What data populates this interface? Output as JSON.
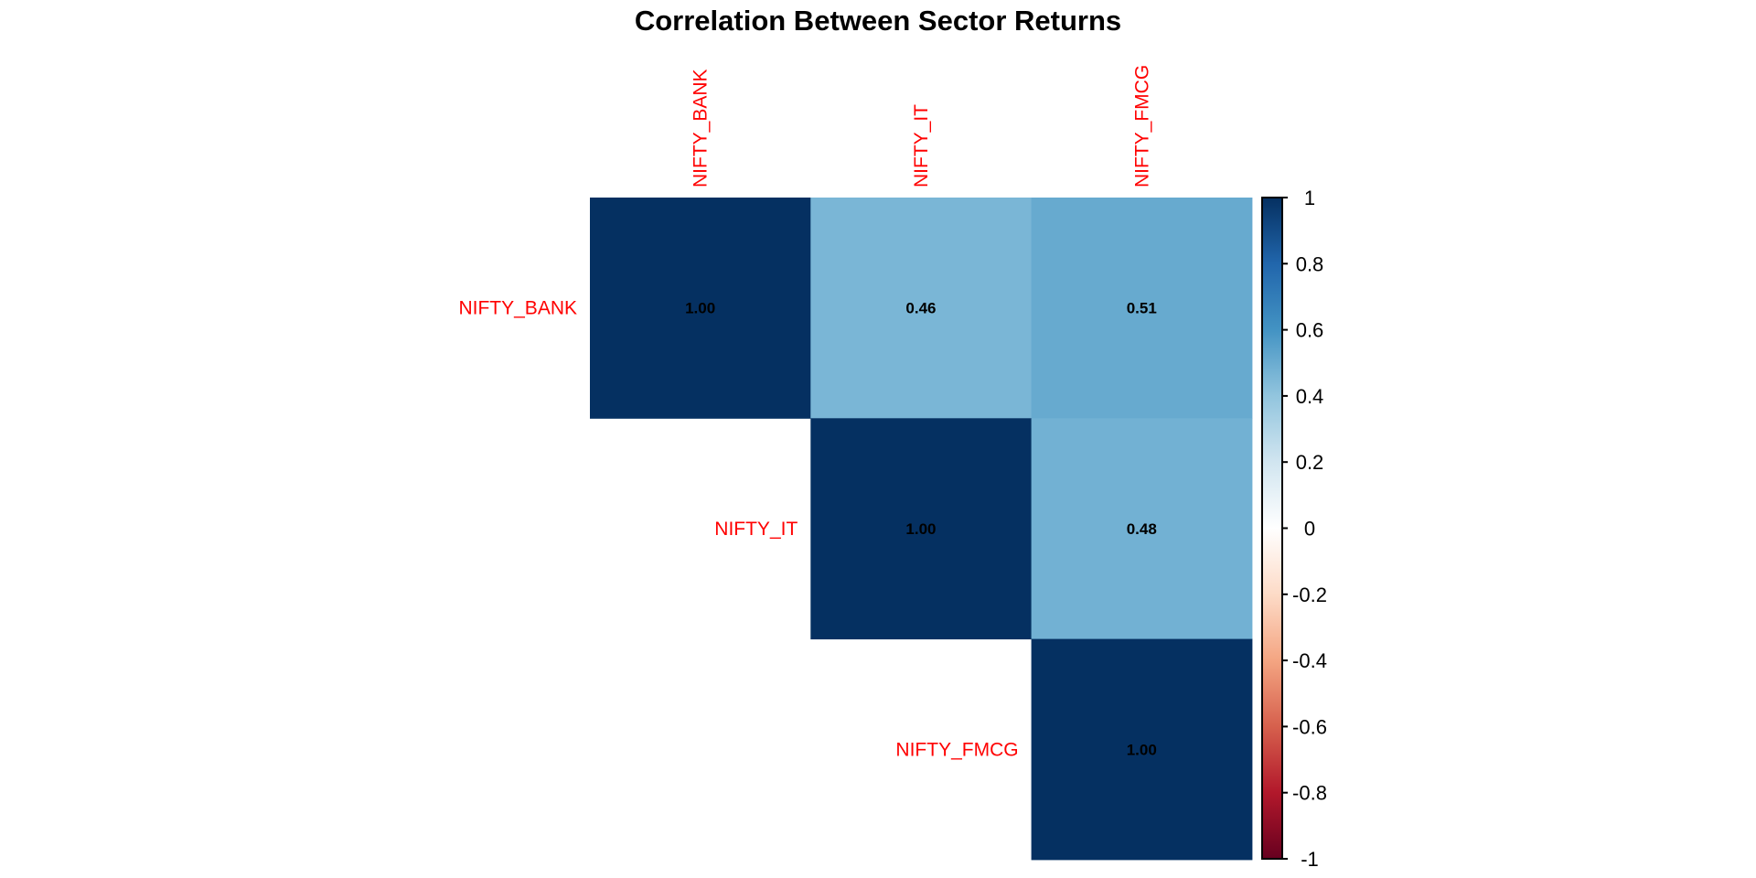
{
  "chart_data": {
    "type": "heatmap",
    "title": "Correlation Between Sector Returns",
    "variables": [
      "NIFTY_BANK",
      "NIFTY_IT",
      "NIFTY_FMCG"
    ],
    "matrix": [
      [
        1.0,
        0.46,
        0.51
      ],
      [
        null,
        1.0,
        0.48
      ],
      [
        null,
        null,
        1.0
      ]
    ],
    "value_labels": [
      [
        "1.00",
        "0.46",
        "0.51"
      ],
      [
        null,
        "1.00",
        "0.48"
      ],
      [
        null,
        null,
        "1.00"
      ]
    ],
    "layout": "upper triangle",
    "colorbar": {
      "range": [
        -1,
        1
      ],
      "ticks": [
        "1",
        "0.8",
        "0.6",
        "0.4",
        "0.2",
        "0",
        "-0.2",
        "-0.4",
        "-0.6",
        "-0.8",
        "-1"
      ],
      "tick_values": [
        1,
        0.8,
        0.6,
        0.4,
        0.2,
        0,
        -0.2,
        -0.4,
        -0.6,
        -0.8,
        -1
      ],
      "colors": [
        "#67001f",
        "#b2182b",
        "#d6604d",
        "#f4a582",
        "#fddbc7",
        "#ffffff",
        "#d1e5f0",
        "#92c5de",
        "#4393c3",
        "#2166ac",
        "#053061"
      ]
    },
    "label_color": "#ff0000"
  }
}
